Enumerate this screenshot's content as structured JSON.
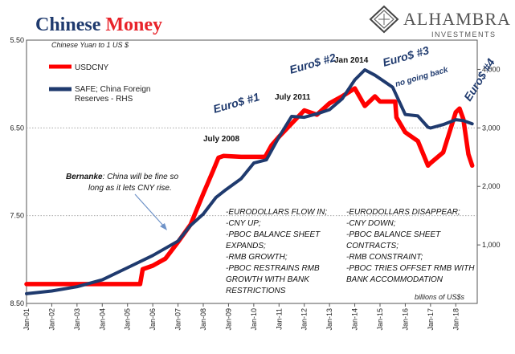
{
  "header": {
    "title_part1": "Chinese ",
    "title_part2": "Money",
    "title_part2_color": "#e8232a",
    "subtitle": "Chinese Yuan to 1 US $",
    "brand_name": "ALHAMBRA",
    "brand_sub": "INVESTMENTS"
  },
  "legend": {
    "items": [
      {
        "label": "USDCNY",
        "color": "#ff0000"
      },
      {
        "label_line1": "SAFE; China Foreign",
        "label_line2": "Reserves - RHS",
        "color": "#1f3a6e"
      }
    ]
  },
  "annotations": {
    "euro1": "Euro$ #1",
    "euro2": "Euro$ #2",
    "euro3": "Euro$ #3",
    "euro3_sub": "no going back",
    "euro4": "Euro$ #4",
    "july2008": "July 2008",
    "july2011": "July 2011",
    "jan2014": "Jan 2014",
    "bernanke_bold": "Bernanke",
    "bernanke_rest": ": China will be fine so",
    "bernanke_line2": "long as it lets CNY rise.",
    "left_block": [
      "-EURODOLLARS FLOW IN;",
      "-CNY UP;",
      "-PBOC BALANCE SHEET",
      "EXPANDS;",
      "-RMB GROWTH;",
      "-PBOC RESTRAINS RMB",
      "GROWTH WITH BANK",
      "RESTRICTIONS"
    ],
    "right_block": [
      "-EURODOLLARS DISAPPEAR;",
      "-CNY DOWN;",
      "-PBOC BALANCE SHEET",
      "CONTRACTS;",
      "-RMB CONSTRAINT;",
      "-PBOC TRIES OFFSET RMB WITH",
      "BANK ACCOMMODATION"
    ],
    "units": "billions of US$s"
  },
  "chart_data": {
    "type": "line",
    "x_ticks": [
      "Jan-01",
      "Jan-02",
      "Jan-03",
      "Jan-04",
      "Jan-05",
      "Jan-06",
      "Jan-07",
      "Jan-08",
      "Jan-09",
      "Jan-10",
      "Jan-11",
      "Jan-12",
      "Jan-13",
      "Jan-14",
      "Jan-15",
      "Jan-16",
      "Jan-17",
      "Jan-18"
    ],
    "y_left": {
      "ticks": [
        "5.50",
        "6.50",
        "7.50",
        "8.50"
      ],
      "values": [
        5.5,
        6.5,
        7.5,
        8.5
      ],
      "range": [
        8.5,
        5.5
      ],
      "inverted": true
    },
    "y_right": {
      "ticks": [
        "1,000",
        "2,000",
        "3,000",
        "4,000"
      ],
      "values": [
        1000,
        2000,
        3000,
        4000
      ],
      "range": [
        0,
        4500
      ]
    },
    "grid": "horizontal dotted",
    "legend_position": "top-left",
    "series": [
      {
        "name": "USDCNY",
        "axis": "left",
        "color": "#ff0000",
        "points": [
          [
            2001.0,
            8.28
          ],
          [
            2005.5,
            8.28
          ],
          [
            2005.6,
            8.11
          ],
          [
            2006.0,
            8.07
          ],
          [
            2006.5,
            7.99
          ],
          [
            2007.0,
            7.8
          ],
          [
            2007.5,
            7.6
          ],
          [
            2008.0,
            7.25
          ],
          [
            2008.4,
            6.98
          ],
          [
            2008.6,
            6.84
          ],
          [
            2008.8,
            6.82
          ],
          [
            2009.5,
            6.83
          ],
          [
            2010.0,
            6.83
          ],
          [
            2010.45,
            6.83
          ],
          [
            2010.7,
            6.7
          ],
          [
            2011.0,
            6.6
          ],
          [
            2011.5,
            6.45
          ],
          [
            2012.0,
            6.3
          ],
          [
            2012.5,
            6.35
          ],
          [
            2013.0,
            6.22
          ],
          [
            2013.5,
            6.14
          ],
          [
            2014.0,
            6.05
          ],
          [
            2014.4,
            6.25
          ],
          [
            2014.8,
            6.14
          ],
          [
            2015.0,
            6.2
          ],
          [
            2015.6,
            6.2
          ],
          [
            2015.65,
            6.38
          ],
          [
            2016.0,
            6.55
          ],
          [
            2016.5,
            6.65
          ],
          [
            2016.9,
            6.93
          ],
          [
            2017.0,
            6.9
          ],
          [
            2017.5,
            6.78
          ],
          [
            2018.0,
            6.32
          ],
          [
            2018.15,
            6.28
          ],
          [
            2018.3,
            6.4
          ],
          [
            2018.5,
            6.8
          ],
          [
            2018.65,
            6.93
          ]
        ]
      },
      {
        "name": "SAFE; China Foreign Reserves - RHS",
        "axis": "right",
        "color": "#1f3a6e",
        "points": [
          [
            2001.0,
            166
          ],
          [
            2002.0,
            212
          ],
          [
            2003.0,
            286
          ],
          [
            2004.0,
            403
          ],
          [
            2005.0,
            610
          ],
          [
            2006.0,
            819
          ],
          [
            2007.0,
            1066
          ],
          [
            2007.5,
            1333
          ],
          [
            2008.0,
            1528
          ],
          [
            2008.5,
            1809
          ],
          [
            2008.9,
            1946
          ],
          [
            2009.5,
            2132
          ],
          [
            2010.0,
            2399
          ],
          [
            2010.5,
            2454
          ],
          [
            2011.0,
            2847
          ],
          [
            2011.5,
            3197
          ],
          [
            2012.0,
            3181
          ],
          [
            2012.5,
            3240
          ],
          [
            2013.0,
            3312
          ],
          [
            2013.5,
            3497
          ],
          [
            2014.0,
            3821
          ],
          [
            2014.4,
            3993
          ],
          [
            2014.8,
            3900
          ],
          [
            2015.0,
            3843
          ],
          [
            2015.5,
            3694
          ],
          [
            2016.0,
            3230
          ],
          [
            2016.5,
            3205
          ],
          [
            2016.9,
            3011
          ],
          [
            2017.0,
            2998
          ],
          [
            2017.5,
            3057
          ],
          [
            2018.0,
            3140
          ],
          [
            2018.3,
            3125
          ],
          [
            2018.65,
            3070
          ]
        ]
      }
    ]
  }
}
